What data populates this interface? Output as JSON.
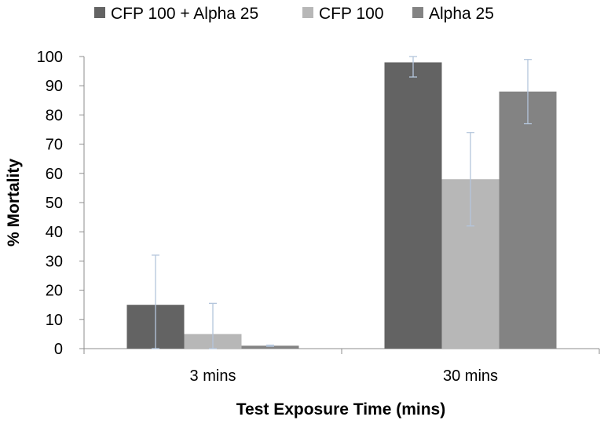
{
  "chart_data": {
    "type": "bar",
    "categories": [
      "3 mins",
      "30 mins"
    ],
    "series": [
      {
        "name": "CFP 100 + Alpha 25",
        "color": "#636363",
        "values": [
          15,
          98
        ],
        "error": [
          17,
          5
        ]
      },
      {
        "name": "CFP 100",
        "color": "#b7b7b7",
        "values": [
          5,
          58
        ],
        "error": [
          10.5,
          16
        ]
      },
      {
        "name": "Alpha 25",
        "color": "#838383",
        "values": [
          1,
          88
        ],
        "error": [
          0.2,
          11
        ]
      }
    ],
    "title": "",
    "xlabel": "Test Exposure Time (mins)",
    "ylabel": "% Mortality",
    "ylim": [
      0,
      100
    ],
    "yticks": [
      "0",
      "10",
      "20",
      "30",
      "40",
      "50",
      "60",
      "70",
      "80",
      "90",
      "100"
    ],
    "grid": false,
    "legend_position": "top",
    "error_bar_color": "#b4c6dc"
  }
}
